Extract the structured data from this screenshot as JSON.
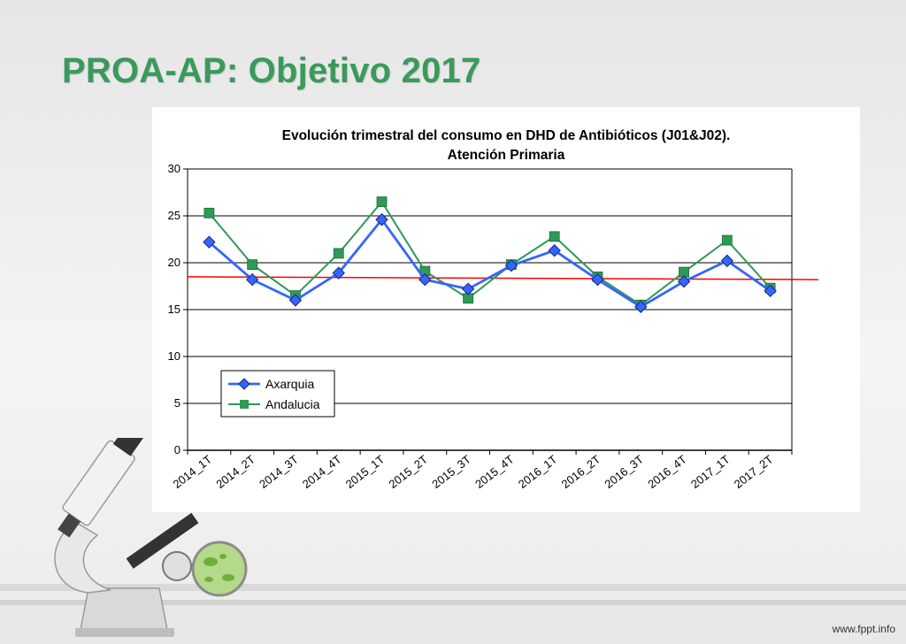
{
  "slide": {
    "title": "PROA-AP: Objetivo 2017",
    "footer": "www.fppt.info"
  },
  "colors": {
    "title_green": "#3a9a5b",
    "series_axarquia": "#3366ff",
    "series_andalucia": "#2e9a55",
    "target_line": "#ff0000"
  },
  "icons": [
    "microscope-icon",
    "petri-dish-icon"
  ],
  "chart_data": {
    "type": "line",
    "title": "Evolución trimestral del consumo en DHD de Antibióticos (J01&J02).",
    "subtitle": "Atención Primaria",
    "xlabel": "",
    "ylabel": "",
    "ylim": [
      0,
      30
    ],
    "yticks": [
      "0",
      "5",
      "10",
      "15",
      "20",
      "25",
      "30"
    ],
    "grid": true,
    "legend": "bottom-left",
    "categories": [
      "2014_1T",
      "2014_2T",
      "2014_3T",
      "2014_4T",
      "2015_1T",
      "2015_2T",
      "2015_3T",
      "2015_4T",
      "2016_1T",
      "2016_2T",
      "2016_3T",
      "2016_4T",
      "2017_1T",
      "2017_2T"
    ],
    "series": [
      {
        "name": "Axarquia",
        "marker": "diamond",
        "values": [
          22.2,
          18.2,
          16.0,
          18.9,
          24.6,
          18.2,
          17.2,
          19.7,
          21.3,
          18.2,
          15.3,
          18.0,
          20.2,
          17.0
        ]
      },
      {
        "name": "Andalucia",
        "marker": "square",
        "values": [
          25.3,
          19.8,
          16.5,
          21.0,
          26.5,
          19.1,
          16.2,
          19.8,
          22.8,
          18.5,
          15.5,
          19.0,
          22.4,
          17.3
        ]
      }
    ],
    "target_line": {
      "y_start": 18.5,
      "y_end": 18.2
    }
  }
}
